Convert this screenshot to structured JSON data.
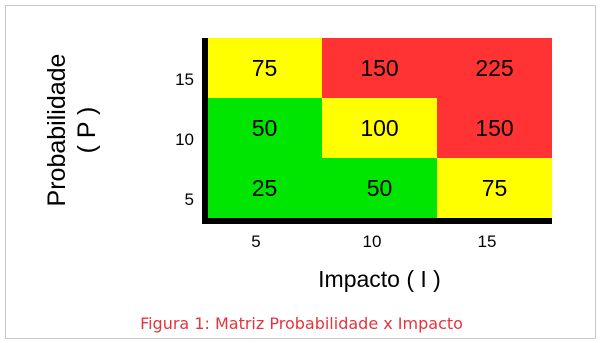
{
  "chart_data": {
    "type": "heatmap",
    "title": "",
    "xlabel": "Impacto ( I )",
    "ylabel_lines": [
      "Probabilidade",
      "( P )"
    ],
    "x_categories": [
      "5",
      "10",
      "15"
    ],
    "y_categories": [
      "15",
      "10",
      "5"
    ],
    "values": [
      [
        75,
        150,
        225
      ],
      [
        50,
        100,
        150
      ],
      [
        25,
        50,
        75
      ]
    ],
    "cell_colors": [
      [
        "#ffff00",
        "#ff3333",
        "#ff3333"
      ],
      [
        "#00e600",
        "#ffff00",
        "#ff3333"
      ],
      [
        "#00e600",
        "#00e600",
        "#ffff00"
      ]
    ],
    "legend": "none",
    "grid": false
  },
  "caption": "Figura 1: Matriz Probabilidade x Impacto",
  "colors": {
    "low": "#00e600",
    "medium": "#ffff00",
    "high": "#ff3333",
    "caption": "#e8333b"
  }
}
